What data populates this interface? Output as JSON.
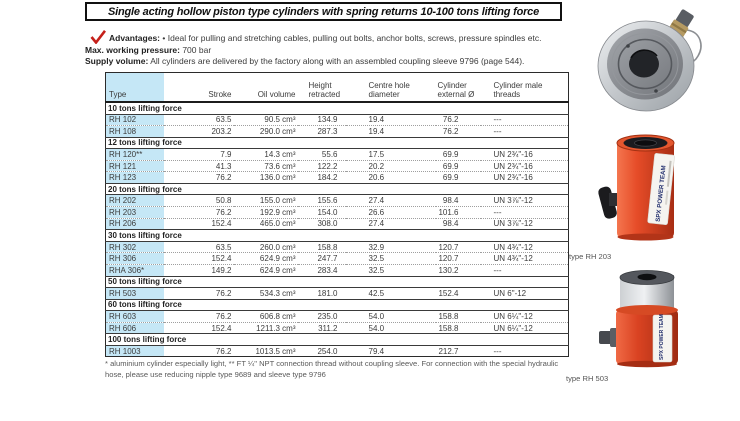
{
  "header": {
    "title": "Single acting hollow piston type cylinders with spring returns 10-100 tons lifting force",
    "advantages_label": "Advantages:",
    "advantages_text": "• Ideal for pulling and stretching cables, pulling out bolts, anchor bolts, screws, pressure spindles etc.",
    "max_pressure_label": "Max. working pressure:",
    "max_pressure_value": "700 bar",
    "supply_label": "Supply volume:",
    "supply_text": "All cylinders are delivered by the factory along with an assembled coupling sleeve 9796 (page 544)."
  },
  "table": {
    "columns": [
      "Type",
      "Stroke",
      "Oil volume",
      "Height retracted",
      "Centre hole diameter",
      "Cylinder external Ø",
      "Cylinder male threads"
    ],
    "sections": [
      {
        "label": "10 tons lifting force",
        "rows": [
          [
            "RH 102",
            "63.5",
            "90.5 cm³",
            "134.9",
            "19.4",
            "76.2",
            "---"
          ],
          [
            "RH 108",
            "203.2",
            "290.0 cm³",
            "287.3",
            "19.4",
            "76.2",
            "---"
          ]
        ]
      },
      {
        "label": "12 tons lifting force",
        "rows": [
          [
            "RH 120**",
            "7.9",
            "14.3 cm³",
            "55.6",
            "17.5",
            "69.9",
            "UN 2¾\"-16"
          ],
          [
            "RH 121",
            "41.3",
            "73.6 cm³",
            "122.2",
            "20.2",
            "69.9",
            "UN 2¾\"-16"
          ],
          [
            "RH 123",
            "76.2",
            "136.0 cm³",
            "184.2",
            "20.6",
            "69.9",
            "UN 2¾\"-16"
          ]
        ]
      },
      {
        "label": "20 tons lifting force",
        "rows": [
          [
            "RH 202",
            "50.8",
            "155.0 cm³",
            "155.6",
            "27.4",
            "98.4",
            "UN 3⅞\"-12"
          ],
          [
            "RH 203",
            "76.2",
            "192.9 cm³",
            "154.0",
            "26.6",
            "101.6",
            "---"
          ],
          [
            "RH 206",
            "152.4",
            "465.0 cm³",
            "308.0",
            "27.4",
            "98.4",
            "UN 3⅞\"-12"
          ]
        ]
      },
      {
        "label": "30 tons lifting force",
        "rows": [
          [
            "RH 302",
            "63.5",
            "260.0 cm³",
            "158.8",
            "32.9",
            "120.7",
            "UN 4¾\"-12"
          ],
          [
            "RH 306",
            "152.4",
            "624.9 cm³",
            "247.7",
            "32.5",
            "120.7",
            "UN 4¾\"-12"
          ],
          [
            "RHA 306*",
            "149.2",
            "624.9 cm³",
            "283.4",
            "32.5",
            "130.2",
            "---"
          ]
        ]
      },
      {
        "label": "50 tons lifting force",
        "rows": [
          [
            "RH 503",
            "76.2",
            "534.3 cm³",
            "181.0",
            "42.5",
            "152.4",
            "UN 6\"-12"
          ]
        ]
      },
      {
        "label": "60 tons lifting force",
        "rows": [
          [
            "RH 603",
            "76.2",
            "606.8 cm³",
            "235.0",
            "54.0",
            "158.8",
            "UN 6¼\"-12"
          ],
          [
            "RH 606",
            "152.4",
            "1211.3 cm³",
            "311.2",
            "54.0",
            "158.8",
            "UN 6¼\"-12"
          ]
        ]
      },
      {
        "label": "100 tons lifting force",
        "rows": [
          [
            "RH 1003",
            "76.2",
            "1013.5 cm³",
            "254.0",
            "79.4",
            "212.7",
            "---"
          ]
        ]
      }
    ]
  },
  "footnote": "* aluminium cylinder especially light, ** FT ¼\" NPT connection thread without coupling sleeve. For connection with the special hydraulic hose, please use reducing nipple type 9689 and sleeve type 9796",
  "images": {
    "brand": "SPX POWER TEAM",
    "captions": [
      "type RH 203",
      "type RH 503"
    ]
  },
  "colors": {
    "accent_blue": "#c5e7f6",
    "check_red": "#c5201a",
    "cylinder_red": "#e04527"
  }
}
